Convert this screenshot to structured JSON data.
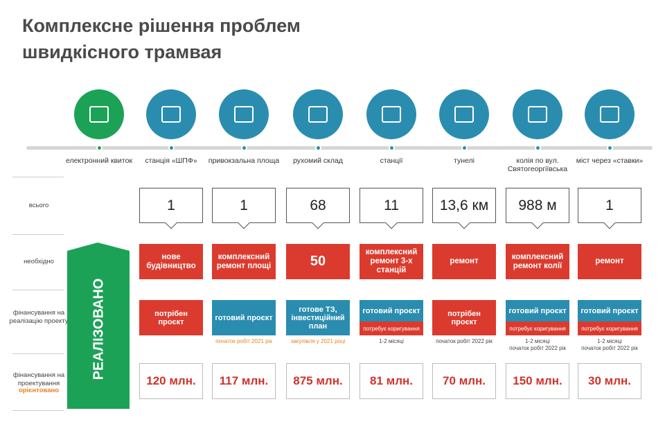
{
  "title": "Комплексне рішення проблем швидкісного трамвая",
  "row_labels": [
    "всього",
    "необхідно",
    "фінансування на реалізацію проекту",
    "фінансування на проектування"
  ],
  "row_note": "орієнтовано",
  "banner": "РЕАЛІЗОВАНО",
  "columns": [
    {
      "label": "електронний квиток",
      "icon_color": "#1ba257"
    },
    {
      "label": "станція «ШПФ»",
      "icon_color": "#2a8db0",
      "total": "1",
      "need": "нове будівництво",
      "funding": {
        "text": "потрібен проєкт",
        "color": "#db3b2e"
      },
      "cost": "120 млн."
    },
    {
      "label": "привокзальна площа",
      "icon_color": "#2a8db0",
      "total": "1",
      "need": "комплексний ремонт площі",
      "funding": {
        "text": "готовий проєкт",
        "color": "#2a8db0",
        "notes": [
          {
            "text": "початок робіт 2021 рік",
            "color": "#e8821e"
          }
        ]
      },
      "cost": "117 млн."
    },
    {
      "label": "рухомий склад",
      "icon_color": "#2a8db0",
      "total": "68",
      "need": "50",
      "funding": {
        "text": "готове ТЗ, інвестиційний план",
        "color": "#2a8db0",
        "notes": [
          {
            "text": "закупівля у 2021 році",
            "color": "#e8821e"
          }
        ]
      },
      "cost": "875 млн."
    },
    {
      "label": "станції",
      "icon_color": "#2a8db0",
      "total": "11",
      "need": "комплексний ремонт 3-х станцій",
      "funding": {
        "text": "готовий проєкт",
        "color": "#2a8db0",
        "fix": "потребує коригування",
        "notes": [
          {
            "text": "1-2 місяці",
            "color": "#444444"
          }
        ]
      },
      "cost": "81 млн."
    },
    {
      "label": "тунелі",
      "icon_color": "#2a8db0",
      "total": "13,6 км",
      "need": "ремонт",
      "funding": {
        "text": "потрібен проєкт",
        "color": "#db3b2e",
        "notes": [
          {
            "text": "початок робіт 2022 рік",
            "color": "#444444"
          }
        ]
      },
      "cost": "70 млн."
    },
    {
      "label": "колія по вул. Святогеоргіївська",
      "icon_color": "#2a8db0",
      "total": "988 м",
      "need": "комплексний ремонт колії",
      "funding": {
        "text": "готовий проєкт",
        "color": "#2a8db0",
        "fix": "потребує коригування",
        "notes": [
          {
            "text": "1-2 місяці",
            "color": "#444444"
          },
          {
            "text": "початок робіт 2022 рік",
            "color": "#444444"
          }
        ]
      },
      "cost": "150 млн."
    },
    {
      "label": "міст через «ставки»",
      "icon_color": "#2a8db0",
      "total": "1",
      "need": "ремонт",
      "funding": {
        "text": "готовий проєкт",
        "color": "#2a8db0",
        "fix": "потребує коригування",
        "notes": [
          {
            "text": "1-2 місяці",
            "color": "#444444"
          },
          {
            "text": "початок робіт 2022 рік",
            "color": "#444444"
          }
        ]
      },
      "cost": "30 млн."
    }
  ]
}
